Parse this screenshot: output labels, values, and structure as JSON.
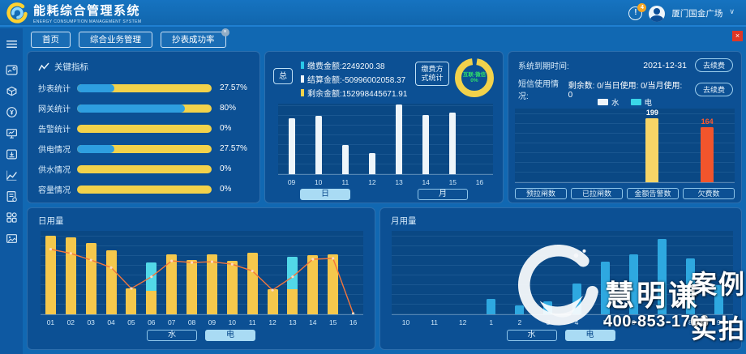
{
  "header": {
    "title": "能耗综合管理系统",
    "subtitle": "ENERGY CONSUMPTION MANAGEMENT SYSTEM",
    "notification_badge": "4",
    "bell_glyph": "!",
    "user_name": "厦门国金广场"
  },
  "nav_tabs": {
    "items": [
      {
        "label": "首页",
        "closable": false
      },
      {
        "label": "综合业务管理",
        "closable": false
      },
      {
        "label": "抄表成功率",
        "closable": true
      }
    ],
    "close_glyph": "×"
  },
  "sidebar": {
    "icons": [
      {
        "name": "menu-icon"
      },
      {
        "name": "meter-card-icon"
      },
      {
        "name": "package-icon"
      },
      {
        "name": "refund-icon"
      },
      {
        "name": "monitor-chart-icon"
      },
      {
        "name": "download-icon"
      },
      {
        "name": "trend-icon"
      },
      {
        "name": "report-settings-icon"
      },
      {
        "name": "apps-grid-icon"
      },
      {
        "name": "gallery-icon"
      }
    ]
  },
  "key_indicators": {
    "title": "关键指标",
    "items": [
      {
        "label": "抄表统计",
        "value": "27.57%",
        "percent": 27.57
      },
      {
        "label": "网关统计",
        "value": "80%",
        "percent": 80
      },
      {
        "label": "告警统计",
        "value": "0%",
        "percent": 0
      },
      {
        "label": "供电情况",
        "value": "27.57%",
        "percent": 27.57
      },
      {
        "label": "供水情况",
        "value": "0%",
        "percent": 0
      },
      {
        "label": "容量情况",
        "value": "0%",
        "percent": 0
      }
    ]
  },
  "payment_panel": {
    "total_bubble": "总",
    "stats": [
      {
        "label": "缴费金额:2249200.38",
        "color": "#29c8e8"
      },
      {
        "label": "结算金额:-50996002058.37",
        "color": "#eef5fa"
      },
      {
        "label": "剩余金额:152998445671.91",
        "color": "#f2d24b"
      }
    ],
    "method_bubble": "缴费方式统计",
    "donut": {
      "line1": "互联-微信",
      "line2": "0%",
      "ring_color": "#f2d24b",
      "text_color": "#2fe06a"
    },
    "tabs": [
      {
        "label": "日",
        "active": true
      },
      {
        "label": "月",
        "active": false
      }
    ]
  },
  "system_panel": {
    "rows": [
      {
        "label": "系统到期时间:",
        "value": "2021-12-31",
        "button": "去续费"
      },
      {
        "label": "短信使用情况:",
        "value": "剩余数: 0/当日使用: 0/当月使用: 0",
        "button": "去续费"
      }
    ],
    "legend": [
      {
        "label": "水",
        "color": "#eef5fa"
      },
      {
        "label": "电",
        "color": "#3ad6e8"
      }
    ],
    "buttons": [
      "预拉闸数",
      "已拉闸数",
      "金额告警数",
      "欠费数"
    ]
  },
  "daily_panel": {
    "title": "日用量",
    "tabs": [
      {
        "label": "水",
        "active": false
      },
      {
        "label": "电",
        "active": true
      }
    ]
  },
  "monthly_panel": {
    "title": "月用量",
    "tabs": [
      {
        "label": "水",
        "active": false
      },
      {
        "label": "电",
        "active": true
      }
    ]
  },
  "watermark": {
    "brand": "慧明谦",
    "phone": "400-853-1766",
    "tag_line1": "案例",
    "tag_line2": "实拍"
  },
  "chart_data": [
    {
      "id": "payment_bar",
      "type": "bar",
      "categories": [
        "09",
        "10",
        "11",
        "12",
        "13",
        "14",
        "15",
        "16"
      ],
      "values": [
        79,
        83,
        41,
        30,
        99,
        84,
        87,
        0
      ],
      "bar_color": "#eef5fa",
      "ylim": [
        0,
        100
      ],
      "grid": true,
      "legend_position": "none"
    },
    {
      "id": "alarm_bar",
      "type": "bar",
      "categories": [
        "预拉闸数",
        "已拉闸数",
        "金额告警数",
        "欠费数"
      ],
      "values": [
        0,
        0,
        199,
        164
      ],
      "bar_colors": [
        "#f2d24b",
        "#f2d24b",
        "#f7d567",
        "#f2552c"
      ],
      "data_labels": [
        "",
        "",
        "199",
        "164"
      ],
      "label_colors": [
        "#ffffff",
        "#ffffff",
        "#ffffff",
        "#ff5a2e"
      ],
      "ylim": [
        0,
        220
      ],
      "grid": true,
      "legend_position": "top-center"
    },
    {
      "id": "daily_usage",
      "type": "bar+line",
      "categories": [
        "01",
        "02",
        "03",
        "04",
        "05",
        "06",
        "07",
        "08",
        "09",
        "10",
        "11",
        "12",
        "13",
        "14",
        "15",
        "16"
      ],
      "series": [
        {
          "name": "bars_yellow",
          "type": "bar",
          "color": "#f5c84c",
          "values": [
            94,
            92,
            85,
            77,
            31,
            28,
            72,
            65,
            72,
            64,
            74,
            30,
            30,
            71,
            72,
            0
          ]
        },
        {
          "name": "bars_cyan",
          "type": "bar",
          "color": "#52d8e8",
          "values": [
            0,
            0,
            0,
            0,
            0,
            34,
            0,
            0,
            0,
            0,
            0,
            0,
            39,
            0,
            0,
            0
          ]
        },
        {
          "name": "trend_line",
          "type": "line",
          "color": "#f3763c",
          "values": [
            78,
            73,
            65,
            56,
            31,
            45,
            64,
            62,
            63,
            60,
            52,
            29,
            45,
            66,
            67,
            1
          ]
        }
      ],
      "ylim": [
        0,
        100
      ],
      "grid": true
    },
    {
      "id": "monthly_usage",
      "type": "bar",
      "categories": [
        "10",
        "11",
        "12",
        "1",
        "2",
        "3",
        "4",
        "5",
        "6",
        "7",
        "8",
        "9"
      ],
      "values": [
        0,
        0,
        0,
        18,
        11,
        16,
        37,
        63,
        72,
        90,
        67,
        35
      ],
      "bar_color": "#2ea8e0",
      "ylim": [
        0,
        100
      ],
      "grid": true
    }
  ],
  "colors": {
    "background": "#1168b2",
    "panel": "#0c5094",
    "plot": "#0a4884",
    "accent_yellow": "#f2d24b",
    "accent_blue": "#2e9fe0",
    "accent_cyan": "#3ad6e8",
    "accent_orange": "#f3763c",
    "accent_red": "#f2552c"
  }
}
